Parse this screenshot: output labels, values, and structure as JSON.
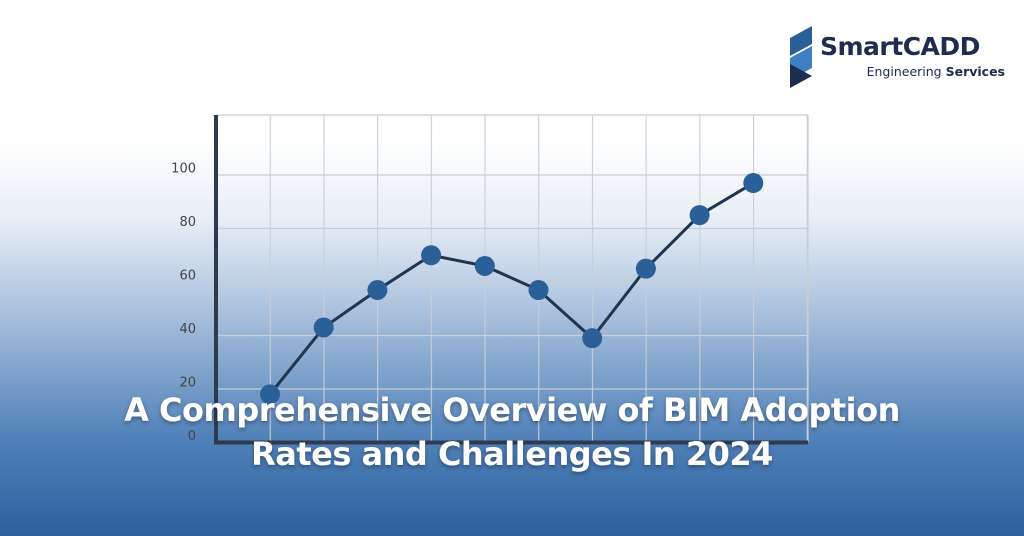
{
  "brand": {
    "name": "SmartCADD",
    "tagline_light": "Engineering",
    "tagline_bold": "Services"
  },
  "chart_data": {
    "type": "line",
    "title": "A Comprehensive Overview of BIM Adoption Rates and Challenges In 2024",
    "categories": [
      null,
      null,
      null,
      null,
      null,
      null,
      null,
      null,
      null,
      null
    ],
    "series": [
      {
        "color": "#2b5f98",
        "values": [
          18,
          43,
          57,
          70,
          66,
          57,
          39,
          65,
          85,
          97
        ]
      }
    ],
    "ylim": [
      0,
      120
    ],
    "yticks": [
      0,
      20,
      40,
      60,
      80,
      100
    ],
    "grid": true
  }
}
